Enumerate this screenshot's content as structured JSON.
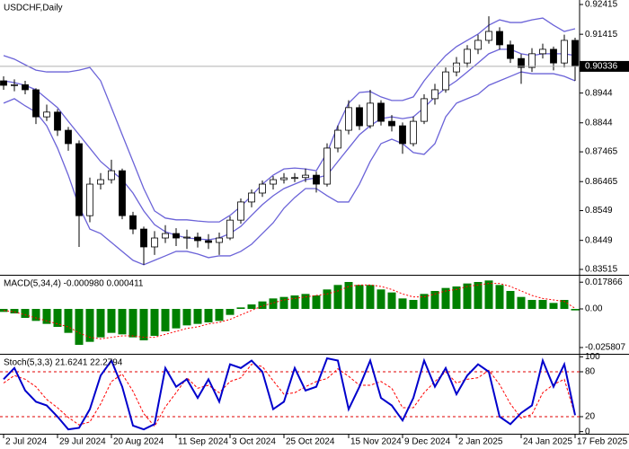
{
  "chart_data": [
    {
      "type": "candlestick",
      "title": "USDCHF,Daily",
      "categories": [
        "2 Jul 2024",
        null,
        null,
        null,
        null,
        "29 Jul 2024",
        null,
        null,
        null,
        null,
        "20 Aug 2024",
        null,
        null,
        null,
        null,
        null,
        "11 Sep 2024",
        null,
        null,
        null,
        null,
        "3 Oct 2024",
        null,
        null,
        null,
        null,
        "25 Oct 2024",
        null,
        null,
        null,
        null,
        null,
        "15 Nov 2024",
        null,
        null,
        null,
        null,
        "9 Dec 2024",
        null,
        null,
        null,
        null,
        "2 Jan 2025",
        null,
        null,
        null,
        null,
        null,
        "24 Jan 2025",
        null,
        null,
        null,
        null,
        "17 Feb 2025"
      ],
      "open": [
        0.8985,
        0.897,
        0.8972,
        0.8955,
        0.8864,
        0.888,
        0.8819,
        0.8774,
        0.8532,
        0.8638,
        0.8653,
        0.8683,
        0.8532,
        0.8487,
        0.8427,
        0.8457,
        0.8472,
        0.8457,
        0.846,
        0.8448,
        0.8442,
        0.8457,
        0.8517,
        0.8578,
        0.8608,
        0.8638,
        0.8653,
        0.8659,
        0.866,
        0.8668,
        0.8638,
        0.8759,
        0.8819,
        0.8895,
        0.8834,
        0.891,
        0.8849,
        0.8834,
        0.8774,
        0.8849,
        0.8925,
        0.8955,
        0.9015,
        0.9045,
        0.9091,
        0.9121,
        0.9151,
        0.9106,
        0.906,
        0.903,
        0.9076,
        0.9091,
        0.9045,
        0.9121
      ],
      "high": [
        0.9,
        0.899,
        0.8985,
        0.896,
        0.8905,
        0.889,
        0.883,
        0.8785,
        0.866,
        0.8675,
        0.872,
        0.869,
        0.8545,
        0.8495,
        0.848,
        0.85,
        0.849,
        0.8485,
        0.8475,
        0.847,
        0.8475,
        0.853,
        0.859,
        0.862,
        0.865,
        0.8665,
        0.8675,
        0.8675,
        0.869,
        0.868,
        0.8775,
        0.8835,
        0.892,
        0.8905,
        0.8955,
        0.892,
        0.887,
        0.8845,
        0.8865,
        0.894,
        0.8975,
        0.903,
        0.9065,
        0.9105,
        0.914,
        0.9202,
        0.9165,
        0.912,
        0.9075,
        0.9095,
        0.911,
        0.91,
        0.914,
        0.913
      ],
      "low": [
        0.8955,
        0.895,
        0.894,
        0.884,
        0.885,
        0.88,
        0.875,
        0.8427,
        0.851,
        0.862,
        0.864,
        0.852,
        0.847,
        0.8367,
        0.84,
        0.844,
        0.843,
        0.842,
        0.8425,
        0.842,
        0.84,
        0.845,
        0.8505,
        0.856,
        0.8595,
        0.862,
        0.864,
        0.8645,
        0.8645,
        0.861,
        0.863,
        0.8745,
        0.8805,
        0.882,
        0.8825,
        0.8835,
        0.8815,
        0.874,
        0.8765,
        0.884,
        0.8905,
        0.8945,
        0.9,
        0.903,
        0.9075,
        0.911,
        0.909,
        0.9045,
        0.8975,
        0.9015,
        0.906,
        0.902,
        0.903,
        0.8985
      ],
      "close": [
        0.897,
        0.8972,
        0.8955,
        0.8864,
        0.888,
        0.8819,
        0.8774,
        0.8532,
        0.8638,
        0.8653,
        0.8683,
        0.8532,
        0.8487,
        0.8427,
        0.8457,
        0.8472,
        0.8457,
        0.846,
        0.8448,
        0.8442,
        0.8457,
        0.8517,
        0.8578,
        0.8608,
        0.8638,
        0.8653,
        0.8659,
        0.866,
        0.8668,
        0.8638,
        0.8759,
        0.8819,
        0.8895,
        0.8834,
        0.891,
        0.8849,
        0.8834,
        0.8774,
        0.8849,
        0.8925,
        0.8955,
        0.9015,
        0.9045,
        0.9091,
        0.9121,
        0.9151,
        0.9106,
        0.906,
        0.903,
        0.9076,
        0.9091,
        0.9045,
        0.9121,
        0.9034
      ],
      "upper": [
        0.907,
        0.9058,
        0.9039,
        0.9021,
        0.9015,
        0.9015,
        0.9015,
        0.9021,
        0.903,
        0.8985,
        0.8895,
        0.8804,
        0.8714,
        0.8623,
        0.8548,
        0.8524,
        0.8518,
        0.8518,
        0.8514,
        0.8511,
        0.8511,
        0.8533,
        0.8563,
        0.8599,
        0.8638,
        0.8668,
        0.8689,
        0.8692,
        0.8689,
        0.8683,
        0.8744,
        0.8834,
        0.891,
        0.8946,
        0.8949,
        0.8931,
        0.8919,
        0.8919,
        0.8931,
        0.8985,
        0.903,
        0.907,
        0.91,
        0.9121,
        0.9142,
        0.9172,
        0.919,
        0.9181,
        0.9181,
        0.919,
        0.9196,
        0.9172,
        0.9151,
        0.916
      ],
      "middle": [
        0.8985,
        0.8979,
        0.897,
        0.8955,
        0.8925,
        0.8895,
        0.8849,
        0.8804,
        0.8759,
        0.8714,
        0.8683,
        0.8653,
        0.8608,
        0.8548,
        0.8502,
        0.8478,
        0.8466,
        0.8457,
        0.8454,
        0.8451,
        0.8457,
        0.8472,
        0.8496,
        0.8533,
        0.8569,
        0.8599,
        0.8623,
        0.8638,
        0.8653,
        0.8659,
        0.8668,
        0.8714,
        0.8759,
        0.8804,
        0.8834,
        0.8858,
        0.8864,
        0.8858,
        0.8864,
        0.8895,
        0.8931,
        0.8961,
        0.8985,
        0.9015,
        0.9045,
        0.9076,
        0.9091,
        0.9091,
        0.9076,
        0.907,
        0.9076,
        0.9076,
        0.9076,
        0.907
      ],
      "lower": [
        0.891,
        0.8925,
        0.8901,
        0.888,
        0.8834,
        0.8759,
        0.8668,
        0.8563,
        0.8487,
        0.8472,
        0.8442,
        0.8412,
        0.8382,
        0.8367,
        0.8382,
        0.8397,
        0.8412,
        0.8412,
        0.8403,
        0.8391,
        0.8397,
        0.8397,
        0.8412,
        0.8436,
        0.8472,
        0.8508,
        0.8557,
        0.8593,
        0.8623,
        0.8623,
        0.8599,
        0.8578,
        0.8578,
        0.8638,
        0.8714,
        0.8774,
        0.8789,
        0.8774,
        0.8744,
        0.8738,
        0.8774,
        0.8864,
        0.891,
        0.8925,
        0.894,
        0.897,
        0.8985,
        0.9,
        0.9015,
        0.9009,
        0.9009,
        0.9009,
        0.9,
        0.8985
      ],
      "band_color": "#6b63d8",
      "bull_color": "#ffffff",
      "bear_color": "#000000",
      "last_price": 0.90336,
      "ylim": [
        0.83364,
        0.92536
      ],
      "yticks": [
        0.92415,
        0.91415,
        0.8944,
        0.8844,
        0.87465,
        0.86465,
        0.8549,
        0.8449,
        0.83515
      ]
    },
    {
      "type": "macd",
      "title": "MACD(5,34,4) -0.000980 0.000411",
      "values": [
        -0.002,
        -0.003,
        -0.006,
        -0.008,
        -0.01,
        -0.012,
        -0.016,
        -0.024,
        -0.022,
        -0.019,
        -0.016,
        -0.017,
        -0.019,
        -0.021,
        -0.018,
        -0.015,
        -0.013,
        -0.011,
        -0.01,
        -0.009,
        -0.008,
        -0.004,
        0.001,
        0.003,
        0.005,
        0.007,
        0.008,
        0.009,
        0.01,
        0.009,
        0.013,
        0.016,
        0.018,
        0.016,
        0.016,
        0.013,
        0.011,
        0.007,
        0.006,
        0.01,
        0.012,
        0.014,
        0.015,
        0.017,
        0.018,
        0.019,
        0.016,
        0.012,
        0.008,
        0.006,
        0.006,
        0.004,
        0.006,
        -0.001
      ],
      "signal": [
        -0.001,
        -0.002,
        -0.004,
        -0.006,
        -0.008,
        -0.01,
        -0.012,
        -0.016,
        -0.019,
        -0.02,
        -0.019,
        -0.018,
        -0.018,
        -0.019,
        -0.019,
        -0.017,
        -0.015,
        -0.013,
        -0.012,
        -0.01,
        -0.009,
        -0.007,
        -0.004,
        -0.001,
        0.002,
        0.004,
        0.006,
        0.007,
        0.008,
        0.009,
        0.01,
        0.012,
        0.015,
        0.016,
        0.016,
        0.015,
        0.013,
        0.01,
        0.008,
        0.008,
        0.01,
        0.012,
        0.013,
        0.015,
        0.016,
        0.017,
        0.017,
        0.015,
        0.012,
        0.009,
        0.007,
        0.006,
        0.005,
        0.0004
      ],
      "color": "#008000",
      "signal_color": "#ff0000",
      "ylim": [
        -0.0294,
        0.0216
      ],
      "yticks": [
        0.017866,
        {
          "value": 0,
          "label": "0.00"
        },
        -0.025807
      ]
    },
    {
      "type": "stoch",
      "title": "Stoch(5,3,3) 21.6241 22.2794",
      "k": [
        70,
        85,
        55,
        40,
        35,
        20,
        3,
        5,
        30,
        75,
        95,
        60,
        8,
        3,
        10,
        85,
        60,
        70,
        45,
        70,
        40,
        90,
        85,
        95,
        80,
        30,
        40,
        85,
        55,
        60,
        98,
        95,
        30,
        60,
        95,
        45,
        35,
        15,
        45,
        95,
        60,
        85,
        50,
        75,
        90,
        80,
        20,
        10,
        25,
        35,
        95,
        60,
        90,
        22
      ],
      "d": [
        65,
        75,
        70,
        60,
        43,
        32,
        19,
        9,
        13,
        37,
        67,
        77,
        54,
        24,
        7,
        33,
        52,
        72,
        58,
        62,
        52,
        67,
        72,
        90,
        87,
        68,
        50,
        52,
        60,
        67,
        71,
        84,
        74,
        62,
        62,
        67,
        58,
        32,
        32,
        52,
        67,
        80,
        65,
        70,
        72,
        82,
        63,
        37,
        18,
        23,
        52,
        63,
        70,
        22
      ],
      "k_color": "#0000cc",
      "d_color": "#ff0000",
      "levels": [
        80,
        20
      ],
      "ylim": [
        -1.6,
        101.6
      ],
      "yticks": [
        100,
        80,
        20,
        0
      ]
    }
  ]
}
